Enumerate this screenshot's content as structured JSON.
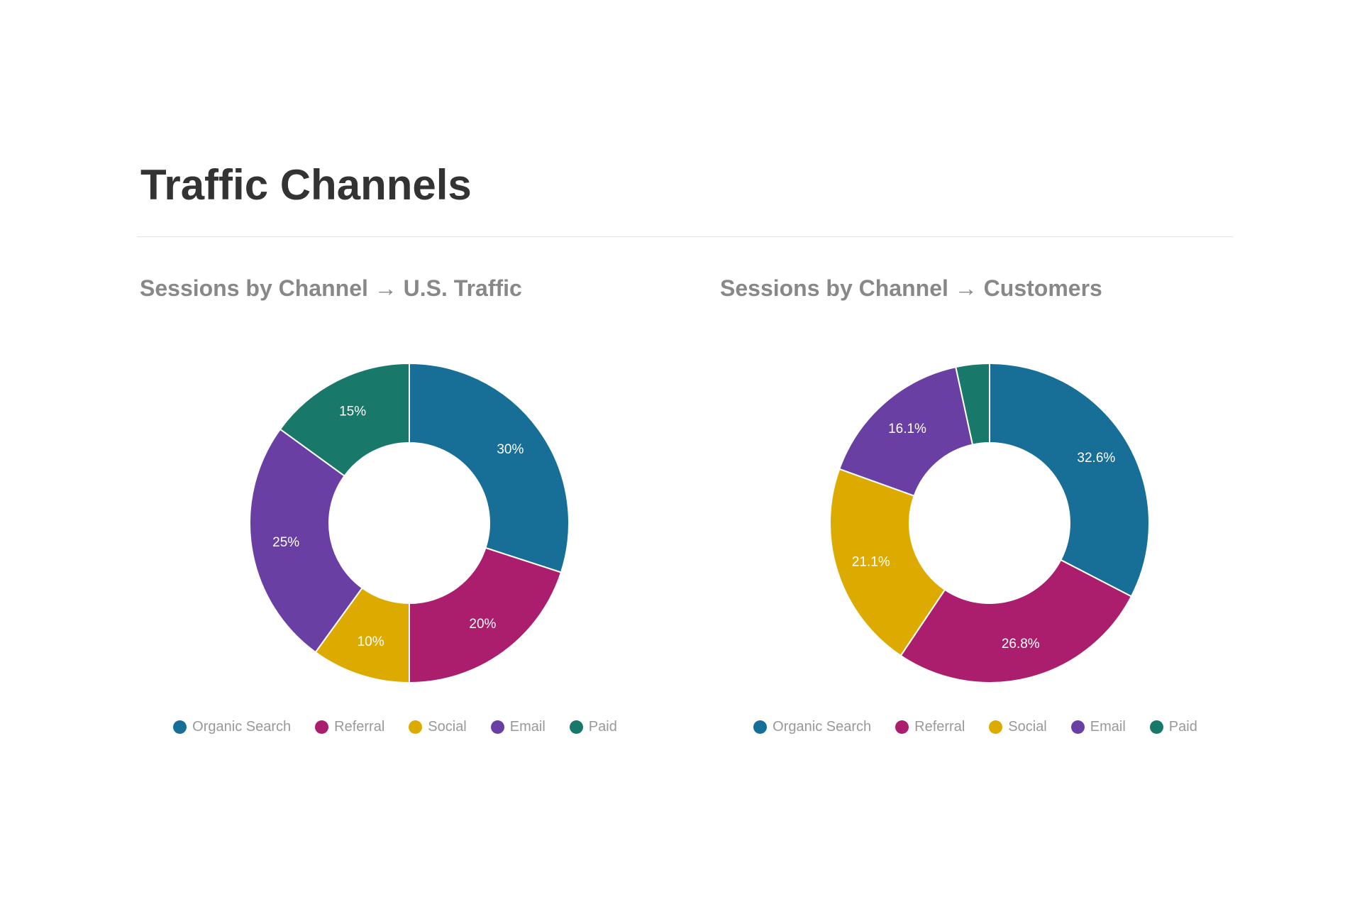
{
  "page": {
    "title": "Traffic Channels"
  },
  "colors": {
    "Organic Search": "#176f98",
    "Referral": "#ab1e6e",
    "Social": "#ddab00",
    "Email": "#6a3fa3",
    "Paid": "#18796a"
  },
  "chart_data": [
    {
      "type": "pie",
      "variant": "donut",
      "title": "Sessions by Channel → U.S. Traffic",
      "categories": [
        "Organic Search",
        "Referral",
        "Social",
        "Email",
        "Paid"
      ],
      "values": [
        30,
        20,
        10,
        25,
        15
      ],
      "labels": [
        "30%",
        "20%",
        "10%",
        "25%",
        "15%"
      ],
      "legend": "bottom"
    },
    {
      "type": "pie",
      "variant": "donut",
      "title": "Sessions by Channel → Customers",
      "categories": [
        "Organic Search",
        "Referral",
        "Social",
        "Email",
        "Paid"
      ],
      "values": [
        32.6,
        26.8,
        21.1,
        16.1,
        3.4
      ],
      "labels": [
        "32.6%",
        "26.8%",
        "21.1%",
        "16.1%",
        ""
      ],
      "legend": "bottom"
    }
  ]
}
